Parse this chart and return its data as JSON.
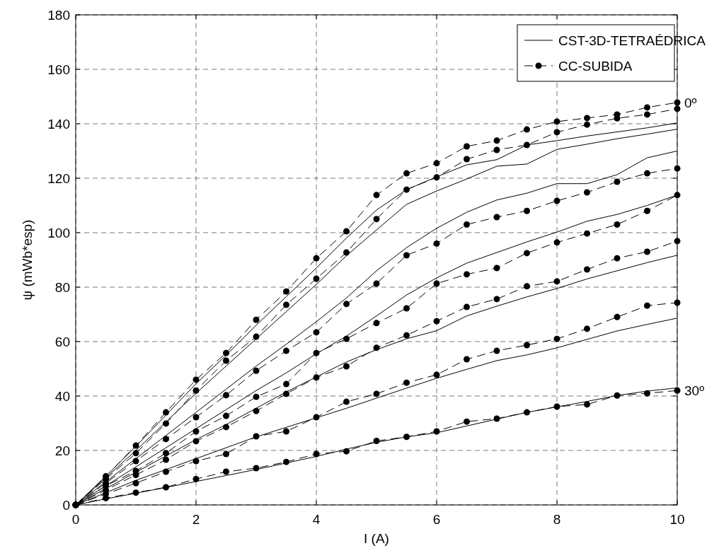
{
  "chart_data": {
    "type": "line",
    "xlabel": "I (A)",
    "ylabel": "ψ (mWb*esp)",
    "x": [
      0,
      0.5,
      1,
      1.5,
      2,
      2.5,
      3,
      3.5,
      4,
      4.5,
      5,
      5.5,
      6,
      6.5,
      7,
      7.5,
      8,
      8.5,
      9,
      9.5,
      10
    ],
    "xlim": [
      0,
      10
    ],
    "xticks": [
      0,
      2,
      4,
      6,
      8,
      10
    ],
    "ylim": [
      0,
      180
    ],
    "yticks": [
      0,
      20,
      40,
      60,
      80,
      100,
      120,
      140,
      160,
      180
    ],
    "grid": true,
    "legend": "top right",
    "series": [
      {
        "name": "CST-3D-TETRAÉDRICA",
        "color": "#000000",
        "marker": "none",
        "line_style": "solid",
        "values": [
          0,
          10.5,
          21.5,
          33,
          44.5,
          55,
          66,
          76.5,
          87,
          98,
          108.3,
          115.8,
          120.5,
          124.9,
          126.8,
          132.2,
          133.8,
          135.5,
          137,
          138.5,
          140.3
        ]
      },
      {
        "color": "#000000",
        "marker": "none",
        "line_style": "solid",
        "values": [
          0,
          10,
          20,
          30.5,
          41,
          51,
          61,
          71,
          81,
          91.5,
          101,
          110.4,
          115.3,
          119.7,
          124.4,
          125.2,
          130.6,
          132.5,
          134.5,
          136.2,
          138
        ]
      },
      {
        "color": "#000000",
        "marker": "none",
        "line_style": "solid",
        "values": [
          0,
          8.5,
          17,
          25.5,
          34,
          42.5,
          51,
          59,
          67.3,
          76,
          86,
          94.5,
          101.6,
          107.5,
          112,
          114.5,
          118,
          118,
          121.3,
          127.5,
          130
        ]
      },
      {
        "color": "#000000",
        "marker": "none",
        "line_style": "solid",
        "values": [
          0,
          7,
          14,
          21,
          28,
          35,
          42,
          48.5,
          55.5,
          62,
          69.4,
          77.1,
          83.4,
          88.8,
          92.7,
          96.6,
          100.2,
          104.2,
          106.7,
          110,
          113.8
        ]
      },
      {
        "color": "#000000",
        "marker": "none",
        "line_style": "solid",
        "values": [
          0,
          6,
          12,
          18,
          24,
          29.5,
          35.5,
          41.5,
          47,
          52.5,
          57,
          61,
          64,
          69.4,
          73,
          76.4,
          79.5,
          83,
          86,
          89,
          91.7
        ]
      },
      {
        "color": "#000000",
        "marker": "none",
        "line_style": "solid",
        "values": [
          0,
          4.5,
          9,
          13,
          17,
          21,
          25,
          28.5,
          32,
          35.5,
          39.2,
          42.9,
          46.5,
          49.8,
          53,
          55.1,
          57.7,
          60.8,
          63.9,
          66.3,
          68.6
        ]
      },
      {
        "color": "#000000",
        "marker": "none",
        "line_style": "solid",
        "values": [
          0,
          2.2,
          4.3,
          6.4,
          8.6,
          10.8,
          13,
          15.4,
          17.8,
          20.5,
          23,
          25,
          26.5,
          29,
          31.5,
          34,
          36,
          38,
          40.2,
          41.8,
          43
        ]
      },
      {
        "name": "CC-SUBIDA",
        "color": "#000000",
        "marker": "circle",
        "line_style": "dashed",
        "values": [
          0,
          10.5,
          21.8,
          34,
          46,
          55.8,
          68,
          78.4,
          90.6,
          100.5,
          113.8,
          121.8,
          125.5,
          131.7,
          133.8,
          137.9,
          140.8,
          142.1,
          143.4,
          146,
          147.8
        ]
      },
      {
        "color": "#000000",
        "marker": "circle",
        "line_style": "dashed",
        "values": [
          0,
          9.5,
          19,
          29.9,
          42,
          53,
          61.8,
          73.5,
          83.1,
          92.7,
          105,
          115.8,
          120.3,
          127,
          130.4,
          132.2,
          136.9,
          139.7,
          142,
          143.4,
          145.5
        ]
      },
      {
        "color": "#000000",
        "marker": "circle",
        "line_style": "dashed",
        "values": [
          0,
          8,
          16.1,
          24.2,
          32.2,
          40.3,
          49.3,
          56.6,
          63.4,
          73.8,
          81.3,
          91.7,
          96,
          103,
          105.7,
          108,
          111.7,
          114.8,
          118.7,
          121.8,
          123.6
        ]
      },
      {
        "color": "#000000",
        "marker": "circle",
        "line_style": "dashed",
        "values": [
          0,
          7,
          12.5,
          19,
          27,
          32.7,
          39.7,
          44.4,
          55.8,
          61,
          66.8,
          72.2,
          81.3,
          84.7,
          87,
          92.5,
          96.4,
          99.7,
          103,
          108,
          113.8
        ]
      },
      {
        "color": "#000000",
        "marker": "circle",
        "line_style": "dashed",
        "values": [
          0,
          5.5,
          11,
          16.6,
          23.4,
          28.6,
          34.5,
          40.8,
          46.8,
          50.9,
          57.7,
          62.3,
          67.5,
          72.7,
          75.6,
          80.3,
          82.1,
          86.5,
          90.6,
          93,
          96.9
        ]
      },
      {
        "color": "#000000",
        "marker": "circle",
        "line_style": "dashed",
        "values": [
          0,
          4,
          8,
          12.2,
          16.1,
          18.7,
          25.2,
          27,
          32.2,
          37.9,
          40.8,
          44.9,
          47.8,
          53.5,
          56.6,
          58.7,
          61,
          64.7,
          69,
          73.2,
          74.3
        ]
      },
      {
        "color": "#000000",
        "marker": "circle",
        "line_style": "dashed",
        "values": [
          0,
          2.5,
          4.5,
          6.5,
          9.5,
          12.2,
          13.5,
          15.8,
          18.7,
          19.7,
          23.5,
          25,
          27,
          30.6,
          31.7,
          34,
          36.1,
          36.9,
          40.2,
          41,
          42
        ]
      }
    ],
    "annotations": [
      {
        "text": "0º",
        "x": 10,
        "y": 147.8
      },
      {
        "text": "30º",
        "x": 10,
        "y": 42
      }
    ]
  }
}
